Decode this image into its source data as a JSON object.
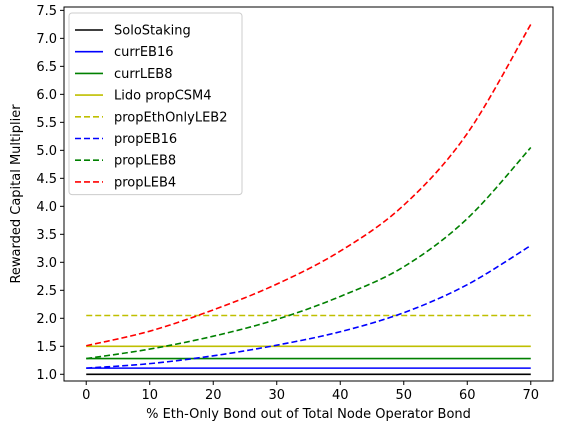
{
  "chart_data": {
    "type": "line",
    "title": "",
    "xlabel": "% Eth-Only Bond out of Total Node Operator Bond",
    "ylabel": "Rewarded Capital Multiplier",
    "xlim": [
      -3.5,
      73.5
    ],
    "ylim": [
      0.88,
      7.56
    ],
    "xticks": [
      0,
      10,
      20,
      30,
      40,
      50,
      60,
      70
    ],
    "xtick_labels": [
      "0",
      "10",
      "20",
      "30",
      "40",
      "50",
      "60",
      "70"
    ],
    "yticks": [
      1.0,
      1.5,
      2.0,
      2.5,
      3.0,
      3.5,
      4.0,
      4.5,
      5.0,
      5.5,
      6.0,
      6.5,
      7.0,
      7.5
    ],
    "ytick_labels": [
      "1.0",
      "1.5",
      "2.0",
      "2.5",
      "3.0",
      "3.5",
      "4.0",
      "4.5",
      "5.0",
      "5.5",
      "6.0",
      "6.5",
      "7.0",
      "7.5"
    ],
    "grid": false,
    "legend_position": "top-left",
    "series": [
      {
        "name": "SoloStaking",
        "color": "#000000",
        "dash": "solid",
        "x": [
          0,
          70
        ],
        "y": [
          1.0,
          1.0
        ]
      },
      {
        "name": "currEB16",
        "color": "#0000ff",
        "dash": "solid",
        "x": [
          0,
          70
        ],
        "y": [
          1.11,
          1.11
        ]
      },
      {
        "name": "currLEB8",
        "color": "#008000",
        "dash": "solid",
        "x": [
          0,
          70
        ],
        "y": [
          1.28,
          1.28
        ]
      },
      {
        "name": "Lido propCSM4",
        "color": "#bfbf00",
        "dash": "solid",
        "x": [
          0,
          70
        ],
        "y": [
          1.5,
          1.5
        ]
      },
      {
        "name": "propEthOnlyLEB2",
        "color": "#bfbf00",
        "dash": "dashed",
        "x": [
          0,
          70
        ],
        "y": [
          2.05,
          2.05
        ]
      },
      {
        "name": "propEB16",
        "color": "#0000ff",
        "dash": "dashed",
        "x": [
          0,
          10,
          20,
          30,
          40,
          50,
          60,
          70
        ],
        "y": [
          1.11,
          1.19,
          1.33,
          1.52,
          1.76,
          2.1,
          2.6,
          3.3
        ]
      },
      {
        "name": "propLEB8",
        "color": "#008000",
        "dash": "dashed",
        "x": [
          0,
          10,
          20,
          30,
          40,
          50,
          60,
          70
        ],
        "y": [
          1.28,
          1.45,
          1.68,
          1.98,
          2.39,
          2.92,
          3.78,
          5.05
        ]
      },
      {
        "name": "propLEB4",
        "color": "#ff0000",
        "dash": "dashed",
        "x": [
          0,
          10,
          20,
          30,
          40,
          50,
          60,
          70
        ],
        "y": [
          1.51,
          1.77,
          2.15,
          2.61,
          3.2,
          4.02,
          5.3,
          7.25
        ]
      }
    ]
  }
}
